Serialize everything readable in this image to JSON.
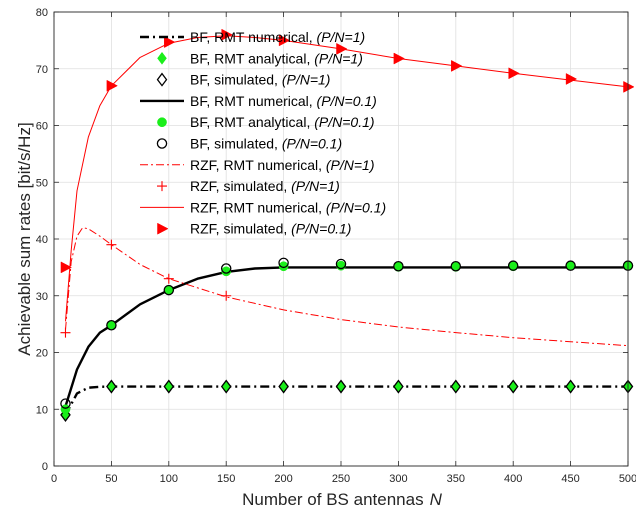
{
  "chart_data": {
    "type": "line",
    "xlabel": "Number of BS antennas",
    "xlabel_var": "N",
    "ylabel": "Achievable sum rates [bit/s/Hz]",
    "xlim": [
      0,
      500
    ],
    "ylim": [
      0,
      80
    ],
    "xticks": [
      "0",
      "50",
      "100",
      "150",
      "200",
      "250",
      "300",
      "350",
      "400",
      "450",
      "500"
    ],
    "yticks": [
      "0",
      "10",
      "20",
      "30",
      "40",
      "50",
      "60",
      "70",
      "80"
    ],
    "grid": true,
    "legend_position": "top-right",
    "series": [
      {
        "id": "bf-num-1",
        "label_main": "BF, RMT numerical, ",
        "label_cond": "(P/N=1)",
        "style": "dashdot-thick",
        "color": "#000000",
        "x": [
          10,
          20,
          30,
          40,
          50,
          75,
          100,
          150,
          200,
          250,
          300,
          350,
          400,
          450,
          500
        ],
        "y": [
          9.0,
          12.8,
          13.8,
          13.95,
          14.0,
          14.0,
          14.0,
          14.0,
          14.0,
          14.0,
          14.0,
          14.0,
          14.0,
          14.0,
          14.0
        ]
      },
      {
        "id": "bf-ana-1",
        "label_main": "BF, RMT analytical, ",
        "label_cond": "(P/N=1)",
        "style": "marker-diamond-filled",
        "color": "#1aee1a",
        "x": [
          10,
          50,
          100,
          150,
          200,
          250,
          300,
          350,
          400,
          450,
          500
        ],
        "y": [
          9.0,
          14.0,
          14.0,
          14.0,
          14.0,
          14.0,
          14.0,
          14.0,
          14.0,
          14.0,
          14.0
        ]
      },
      {
        "id": "bf-sim-1",
        "label_main": "BF, simulated, ",
        "label_cond": "(P/N=1)",
        "style": "marker-diamond-open",
        "color": "#000000",
        "x": [
          10,
          50,
          100,
          150,
          200,
          250,
          300,
          350,
          400,
          450,
          500
        ],
        "y": [
          9.0,
          14.0,
          14.0,
          14.0,
          14.0,
          14.0,
          14.0,
          14.0,
          14.0,
          14.0,
          14.0
        ]
      },
      {
        "id": "bf-num-01",
        "label_main": "BF, RMT numerical, ",
        "label_cond": "(P/N=0.1)",
        "style": "solid-thick",
        "color": "#000000",
        "x": [
          10,
          20,
          30,
          40,
          50,
          75,
          100,
          125,
          150,
          175,
          200,
          225,
          250,
          300,
          350,
          400,
          450,
          500
        ],
        "y": [
          10.5,
          17.0,
          21.0,
          23.5,
          24.8,
          28.5,
          31.0,
          33.0,
          34.2,
          34.8,
          35.0,
          35.0,
          35.0,
          35.0,
          35.0,
          35.0,
          35.0,
          35.0
        ]
      },
      {
        "id": "bf-ana-01",
        "label_main": "BF, RMT analytical, ",
        "label_cond": "(P/N=0.1)",
        "style": "marker-circle-filled",
        "color": "#1aee1a",
        "x": [
          10,
          50,
          100,
          150,
          200,
          250,
          300,
          350,
          400,
          450,
          500
        ],
        "y": [
          10.0,
          24.8,
          31.0,
          34.3,
          35.2,
          35.3,
          35.1,
          35.1,
          35.2,
          35.3,
          35.3
        ]
      },
      {
        "id": "bf-sim-01",
        "label_main": "BF, simulated, ",
        "label_cond": "(P/N=0.1)",
        "style": "marker-circle-open",
        "color": "#000000",
        "x": [
          10,
          50,
          100,
          150,
          200,
          250,
          300,
          350,
          400,
          450,
          500
        ],
        "y": [
          11.0,
          24.8,
          31.0,
          34.8,
          35.8,
          35.6,
          35.2,
          35.2,
          35.3,
          35.3,
          35.3
        ]
      },
      {
        "id": "rzf-num-1",
        "label_main": "RZF, RMT numerical, ",
        "label_cond": "(P/N=1)",
        "style": "dashdot-thin",
        "color": "#ff0000",
        "x": [
          10,
          15,
          20,
          25,
          30,
          40,
          50,
          75,
          100,
          150,
          200,
          250,
          300,
          350,
          400,
          450,
          500
        ],
        "y": [
          24.0,
          36.0,
          40.5,
          42.0,
          41.8,
          40.5,
          39.0,
          35.5,
          33.0,
          29.8,
          27.5,
          25.8,
          24.5,
          23.5,
          22.6,
          21.9,
          21.2
        ]
      },
      {
        "id": "rzf-sim-1",
        "label_main": "RZF, simulated, ",
        "label_cond": "(P/N=1)",
        "style": "marker-plus",
        "color": "#ff0000",
        "x": [
          10,
          50,
          100,
          150
        ],
        "y": [
          23.5,
          39.0,
          33.0,
          30.0
        ]
      },
      {
        "id": "rzf-num-01",
        "label_main": "RZF, RMT numerical, ",
        "label_cond": "(P/N=0.1)",
        "style": "solid-thin",
        "color": "#ff0000",
        "x": [
          10,
          15,
          20,
          30,
          40,
          50,
          75,
          100,
          125,
          150,
          175,
          200,
          250,
          300,
          350,
          400,
          450,
          500
        ],
        "y": [
          25.5,
          38.0,
          48.5,
          58.0,
          63.5,
          67.0,
          72.0,
          74.5,
          75.5,
          75.8,
          75.5,
          75.0,
          73.5,
          71.8,
          70.5,
          69.2,
          68.0,
          66.8
        ]
      },
      {
        "id": "rzf-sim-01",
        "label_main": "RZF, simulated, ",
        "label_cond": "(P/N=0.1)",
        "style": "marker-triangle-right",
        "color": "#ff0000",
        "x": [
          10,
          50,
          100,
          150,
          200,
          250,
          300,
          350,
          400,
          450,
          500
        ],
        "y": [
          35.0,
          67.0,
          74.7,
          76.0,
          75.0,
          73.5,
          71.8,
          70.5,
          69.2,
          68.2,
          66.8
        ]
      }
    ]
  }
}
